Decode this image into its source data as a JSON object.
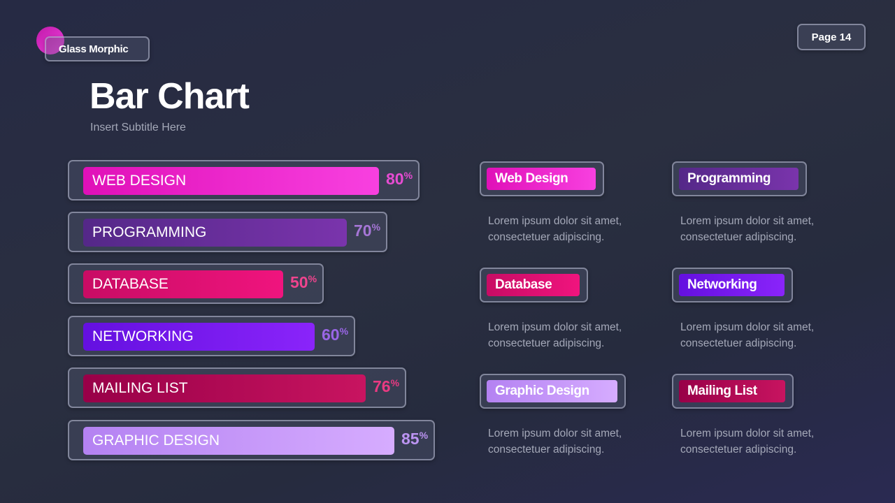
{
  "brand": {
    "name": "Glass Morphic",
    "accent": "#e53ad0"
  },
  "page": {
    "label": "Page 14"
  },
  "header": {
    "title": "Bar Chart",
    "subtitle": "Insert  Subtitle Here"
  },
  "chart_data": {
    "type": "bar",
    "orientation": "horizontal",
    "unit": "%",
    "categories": [
      "WEB DESIGN",
      "PROGRAMMING",
      "DATABASE",
      "NETWORKING",
      "MAILING LIST",
      "GRAPHIC DESIGN"
    ],
    "values": [
      80,
      70,
      50,
      60,
      76,
      85
    ],
    "colors": [
      [
        "#e010b8",
        "#f840e0"
      ],
      [
        "#542888",
        "#7a34ac"
      ],
      [
        "#c80c64",
        "#f0147e"
      ],
      [
        "#6410e0",
        "#8a24fa"
      ],
      [
        "#980048",
        "#c81460"
      ],
      [
        "#b482f2",
        "#d6acff"
      ]
    ],
    "label_colors": [
      "#e64cd2",
      "#a676d6",
      "#f0448e",
      "#9a66e6",
      "#ea3a82",
      "#bc94f2"
    ]
  },
  "cards": [
    {
      "title": "Web Design",
      "text": "Lorem ipsum dolor sit amet, consectetuer adipiscing.",
      "color": [
        "#e010b8",
        "#f840e0"
      ]
    },
    {
      "title": "Programming",
      "text": "Lorem ipsum dolor sit amet, consectetuer adipiscing.",
      "color": [
        "#542888",
        "#7a34ac"
      ]
    },
    {
      "title": "Database",
      "text": "Lorem ipsum dolor sit amet, consectetuer adipiscing.",
      "color": [
        "#c80c64",
        "#f0147e"
      ]
    },
    {
      "title": "Networking",
      "text": "Lorem ipsum dolor sit amet, consectetuer adipiscing.",
      "color": [
        "#6410e0",
        "#8a24fa"
      ]
    },
    {
      "title": "Graphic Design",
      "text": "Lorem ipsum dolor sit amet, consectetuer adipiscing.",
      "color": [
        "#b482f2",
        "#d6acff"
      ]
    },
    {
      "title": "Mailing List",
      "text": "Lorem ipsum dolor sit amet, consectetuer adipiscing.",
      "color": [
        "#980048",
        "#c81460"
      ]
    }
  ]
}
